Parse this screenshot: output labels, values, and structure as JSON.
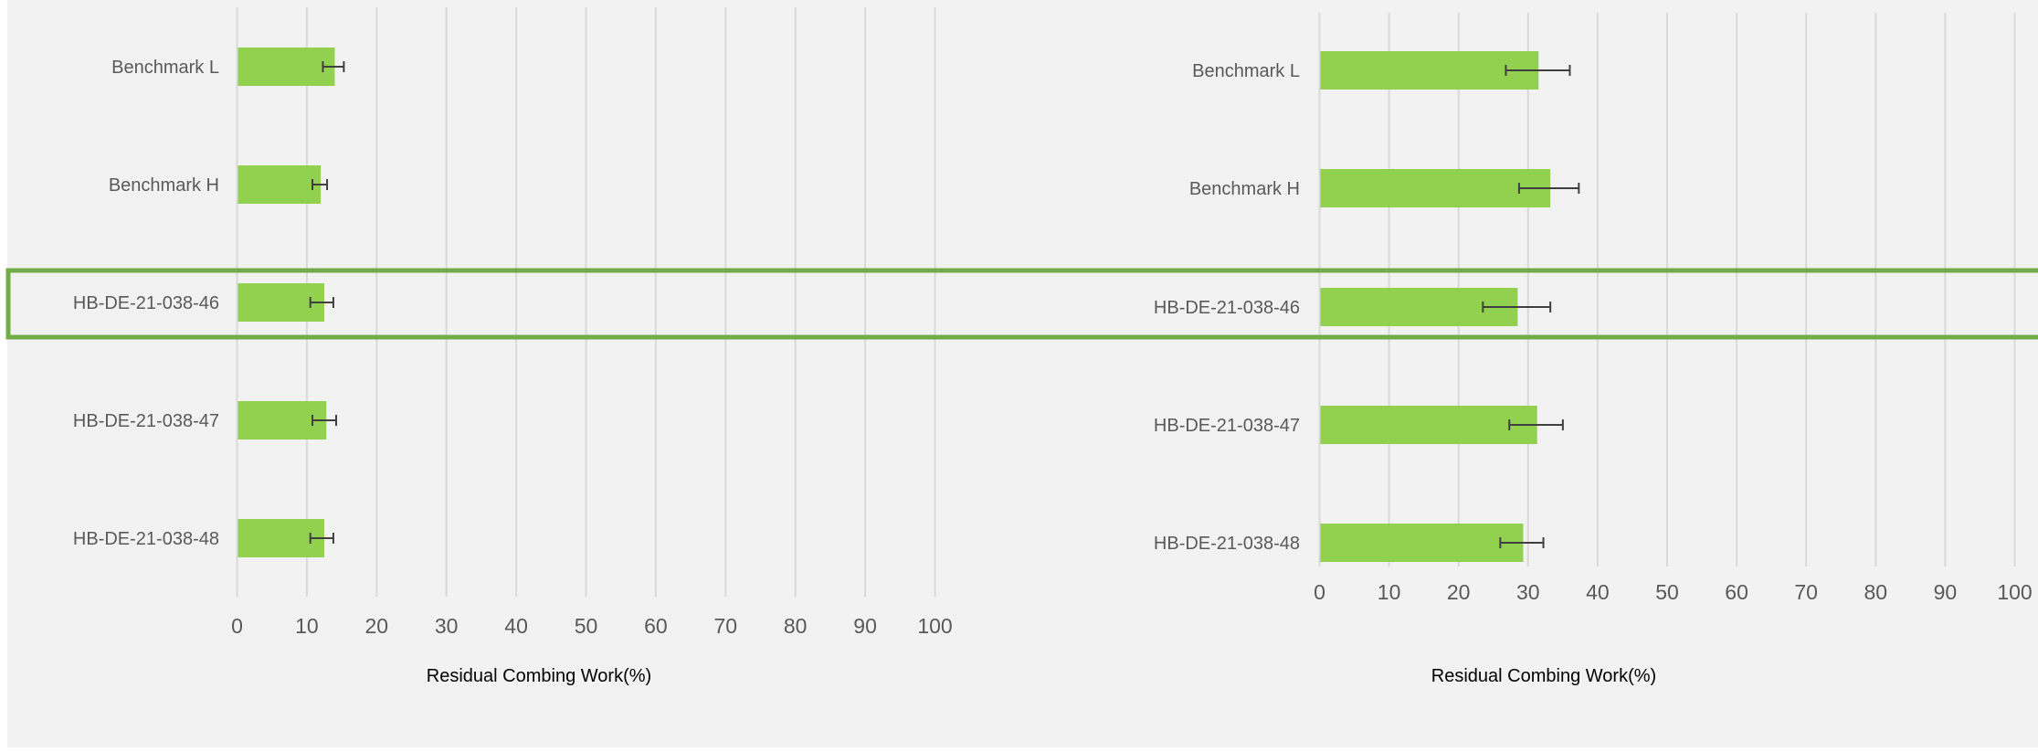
{
  "colors": {
    "background": "#f2f2f2",
    "bar": "#92d050",
    "highlight_border": "#70ad47",
    "gridline": "#d9d9d9",
    "error_bar": "#404040",
    "label_text": "#595959",
    "axis_title_text": "#000000"
  },
  "highlight": {
    "category": "HB-DE-21-038-46"
  },
  "chart_data": [
    {
      "type": "bar",
      "orientation": "horizontal",
      "categories": [
        "Benchmark L",
        "Benchmark H",
        "HB-DE-21-038-46",
        "HB-DE-21-038-47",
        "HB-DE-21-038-48"
      ],
      "values": [
        14,
        12,
        12.5,
        12.8,
        12.5
      ],
      "error_low": [
        12.3,
        10.8,
        10.5,
        10.8,
        10.5
      ],
      "error_high": [
        15.3,
        12.9,
        13.8,
        14.2,
        13.8
      ],
      "xlabel": "Residual Combing Work(%)",
      "xlim": [
        0,
        100
      ],
      "xticks": [
        "0",
        "10",
        "20",
        "30",
        "40",
        "50",
        "60",
        "70",
        "80",
        "90",
        "100"
      ],
      "grid": true
    },
    {
      "type": "bar",
      "orientation": "horizontal",
      "categories": [
        "Benchmark L",
        "Benchmark H",
        "HB-DE-21-038-46",
        "HB-DE-21-038-47",
        "HB-DE-21-038-48"
      ],
      "values": [
        31.5,
        33.2,
        28.5,
        31.3,
        29.3
      ],
      "error_low": [
        26.8,
        28.7,
        23.5,
        27.3,
        26.0
      ],
      "error_high": [
        36.0,
        37.3,
        33.2,
        35.0,
        32.2
      ],
      "xlabel": "Residual Combing Work(%)",
      "xlim": [
        0,
        100
      ],
      "xticks": [
        "0",
        "10",
        "20",
        "30",
        "40",
        "50",
        "60",
        "70",
        "80",
        "90",
        "100"
      ],
      "grid": true
    }
  ]
}
